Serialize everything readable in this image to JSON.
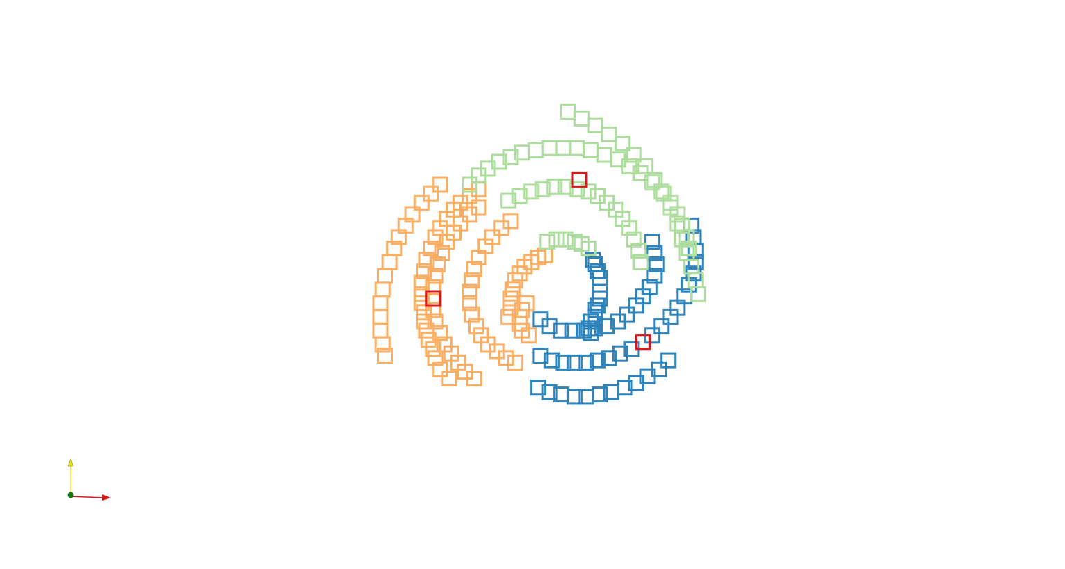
{
  "chart_data": {
    "type": "scatter",
    "marker": "hollow-square",
    "grid": false,
    "legend": "none",
    "xlim": [
      -1.55,
      1.55
    ],
    "ylim": [
      -1.1,
      1.1
    ],
    "series": [
      {
        "color": "#2e83bb",
        "arms": [
          [
            [
              0.05,
              -0.15
            ],
            [
              0.04,
              -0.13
            ],
            [
              0.05,
              -0.1
            ],
            [
              0.07,
              -0.08
            ],
            [
              0.07,
              -0.05
            ],
            [
              0.08,
              -0.03
            ],
            [
              0.09,
              0.0
            ],
            [
              0.09,
              0.03
            ],
            [
              0.09,
              0.06
            ],
            [
              0.09,
              0.09
            ],
            [
              0.08,
              0.12
            ],
            [
              0.07,
              0.15
            ],
            [
              0.06,
              0.17
            ]
          ],
          [
            [
              -0.17,
              -0.09
            ],
            [
              -0.13,
              -0.12
            ],
            [
              -0.08,
              -0.14
            ],
            [
              -0.03,
              -0.14
            ],
            [
              0.02,
              -0.14
            ],
            [
              0.07,
              -0.13
            ],
            [
              0.12,
              -0.12
            ],
            [
              0.17,
              -0.1
            ],
            [
              0.21,
              -0.07
            ],
            [
              0.25,
              -0.03
            ],
            [
              0.28,
              0.01
            ],
            [
              0.31,
              0.05
            ],
            [
              0.33,
              0.1
            ],
            [
              0.34,
              0.15
            ],
            [
              0.33,
              0.2
            ],
            [
              0.32,
              0.25
            ]
          ],
          [
            [
              -0.17,
              -0.25
            ],
            [
              -0.12,
              -0.27
            ],
            [
              -0.07,
              -0.28
            ],
            [
              -0.02,
              -0.28
            ],
            [
              0.03,
              -0.28
            ],
            [
              0.08,
              -0.27
            ],
            [
              0.13,
              -0.26
            ],
            [
              0.18,
              -0.24
            ],
            [
              0.23,
              -0.22
            ],
            [
              0.28,
              -0.19
            ],
            [
              0.32,
              -0.16
            ],
            [
              0.36,
              -0.12
            ],
            [
              0.4,
              -0.08
            ],
            [
              0.43,
              -0.04
            ],
            [
              0.46,
              0.01
            ],
            [
              0.48,
              0.06
            ],
            [
              0.5,
              0.11
            ],
            [
              0.51,
              0.16
            ],
            [
              0.51,
              0.21
            ],
            [
              0.5,
              0.27
            ],
            [
              0.49,
              0.32
            ]
          ],
          [
            [
              -0.18,
              -0.39
            ],
            [
              -0.13,
              -0.41
            ],
            [
              -0.08,
              -0.42
            ],
            [
              -0.02,
              -0.43
            ],
            [
              0.03,
              -0.43
            ],
            [
              0.09,
              -0.42
            ],
            [
              0.14,
              -0.41
            ],
            [
              0.2,
              -0.39
            ],
            [
              0.25,
              -0.37
            ],
            [
              0.3,
              -0.34
            ],
            [
              0.35,
              -0.31
            ],
            [
              0.39,
              -0.27
            ]
          ]
        ]
      },
      {
        "color": "#faae63",
        "arms": [
          [
            [
              -0.23,
              -0.02
            ],
            [
              -0.25,
              -0.05
            ],
            [
              -0.26,
              -0.08
            ],
            [
              -0.26,
              -0.11
            ],
            [
              -0.25,
              -0.14
            ],
            [
              -0.22,
              -0.16
            ]
          ],
          [
            [
              -0.31,
              -0.08
            ],
            [
              -0.3,
              -0.04
            ],
            [
              -0.3,
              0.0
            ],
            [
              -0.29,
              0.04
            ],
            [
              -0.28,
              0.08
            ],
            [
              -0.26,
              0.11
            ],
            [
              -0.24,
              0.14
            ],
            [
              -0.21,
              0.16
            ],
            [
              -0.18,
              0.18
            ],
            [
              -0.15,
              0.19
            ]
          ],
          [
            [
              -0.28,
              -0.28
            ],
            [
              -0.32,
              -0.26
            ],
            [
              -0.36,
              -0.23
            ],
            [
              -0.4,
              -0.2
            ],
            [
              -0.43,
              -0.16
            ],
            [
              -0.45,
              -0.12
            ],
            [
              -0.47,
              -0.07
            ],
            [
              -0.48,
              -0.02
            ],
            [
              -0.48,
              0.03
            ],
            [
              -0.47,
              0.08
            ],
            [
              -0.46,
              0.13
            ],
            [
              -0.44,
              0.18
            ],
            [
              -0.41,
              0.23
            ],
            [
              -0.38,
              0.27
            ],
            [
              -0.34,
              0.31
            ],
            [
              -0.3,
              0.34
            ]
          ],
          [
            [
              -0.46,
              -0.35
            ],
            [
              -0.5,
              -0.32
            ],
            [
              -0.53,
              -0.28
            ],
            [
              -0.56,
              -0.24
            ],
            [
              -0.59,
              -0.2
            ],
            [
              -0.61,
              -0.15
            ],
            [
              -0.63,
              -0.1
            ],
            [
              -0.64,
              -0.05
            ],
            [
              -0.64,
              0.0
            ],
            [
              -0.64,
              0.05
            ],
            [
              -0.63,
              0.1
            ],
            [
              -0.62,
              0.15
            ],
            [
              -0.6,
              0.2
            ],
            [
              -0.58,
              0.25
            ],
            [
              -0.55,
              0.29
            ],
            [
              -0.52,
              0.33
            ],
            [
              -0.48,
              0.37
            ],
            [
              -0.44,
              0.4
            ]
          ],
          [
            [
              -0.57,
              -0.35
            ],
            [
              -0.61,
              -0.31
            ],
            [
              -0.63,
              -0.26
            ],
            [
              -0.64,
              -0.22
            ],
            [
              -0.66,
              -0.18
            ],
            [
              -0.67,
              -0.14
            ],
            [
              -0.68,
              -0.1
            ],
            [
              -0.68,
              -0.06
            ],
            [
              -0.69,
              -0.02
            ],
            [
              -0.69,
              0.02
            ],
            [
              -0.69,
              0.07
            ],
            [
              -0.68,
              0.12
            ],
            [
              -0.67,
              0.17
            ],
            [
              -0.65,
              0.22
            ],
            [
              -0.63,
              0.27
            ],
            [
              -0.61,
              0.31
            ],
            [
              -0.58,
              0.35
            ],
            [
              -0.55,
              0.39
            ],
            [
              -0.52,
              0.42
            ],
            [
              -0.48,
              0.45
            ],
            [
              -0.44,
              0.48
            ]
          ],
          [
            [
              -0.85,
              -0.25
            ],
            [
              -0.86,
              -0.2
            ],
            [
              -0.87,
              -0.14
            ],
            [
              -0.87,
              -0.08
            ],
            [
              -0.87,
              -0.02
            ],
            [
              -0.86,
              0.04
            ],
            [
              -0.85,
              0.1
            ],
            [
              -0.83,
              0.16
            ],
            [
              -0.81,
              0.22
            ],
            [
              -0.79,
              0.27
            ],
            [
              -0.76,
              0.32
            ],
            [
              -0.73,
              0.37
            ],
            [
              -0.69,
              0.42
            ],
            [
              -0.65,
              0.46
            ],
            [
              -0.61,
              0.5
            ]
          ]
        ]
      },
      {
        "color": "#addd9e",
        "arms": [
          [
            [
              -0.1,
              0.26
            ],
            [
              -0.06,
              0.26
            ],
            [
              -0.02,
              0.25
            ],
            [
              0.01,
              0.24
            ],
            [
              0.04,
              0.22
            ],
            [
              -0.14,
              0.25
            ]
          ],
          [
            [
              -0.31,
              0.43
            ],
            [
              -0.26,
              0.45
            ],
            [
              -0.21,
              0.47
            ],
            [
              -0.16,
              0.48
            ],
            [
              -0.11,
              0.49
            ],
            [
              -0.06,
              0.49
            ],
            [
              -0.01,
              0.48
            ],
            [
              0.04,
              0.47
            ],
            [
              0.08,
              0.45
            ],
            [
              0.12,
              0.42
            ],
            [
              0.16,
              0.39
            ],
            [
              0.19,
              0.35
            ],
            [
              0.22,
              0.31
            ],
            [
              0.24,
              0.26
            ],
            [
              0.26,
              0.21
            ],
            [
              0.27,
              0.16
            ]
          ],
          [
            [
              -0.48,
              0.5
            ],
            [
              -0.44,
              0.54
            ],
            [
              -0.4,
              0.57
            ],
            [
              -0.35,
              0.6
            ],
            [
              -0.3,
              0.62
            ],
            [
              -0.25,
              0.64
            ],
            [
              -0.19,
              0.65
            ],
            [
              -0.13,
              0.66
            ],
            [
              -0.07,
              0.66
            ],
            [
              -0.01,
              0.66
            ],
            [
              0.05,
              0.65
            ],
            [
              0.11,
              0.63
            ],
            [
              0.17,
              0.61
            ],
            [
              0.22,
              0.58
            ],
            [
              0.27,
              0.55
            ],
            [
              0.32,
              0.51
            ],
            [
              0.36,
              0.47
            ],
            [
              0.4,
              0.42
            ],
            [
              0.43,
              0.37
            ],
            [
              0.45,
              0.32
            ],
            [
              0.47,
              0.27
            ],
            [
              0.48,
              0.22
            ]
          ],
          [
            [
              -0.05,
              0.82
            ],
            [
              0.01,
              0.79
            ],
            [
              0.07,
              0.76
            ],
            [
              0.13,
              0.72
            ],
            [
              0.19,
              0.68
            ],
            [
              0.24,
              0.63
            ],
            [
              0.29,
              0.58
            ],
            [
              0.33,
              0.52
            ],
            [
              0.37,
              0.46
            ],
            [
              0.4,
              0.4
            ],
            [
              0.43,
              0.33
            ],
            [
              0.45,
              0.26
            ],
            [
              0.47,
              0.2
            ],
            [
              0.49,
              0.14
            ],
            [
              0.51,
              0.08
            ],
            [
              0.52,
              0.02
            ]
          ]
        ]
      },
      {
        "color": "#d7191c",
        "points": [
          [
            0.0,
            0.52
          ],
          [
            -0.64,
            0.0
          ],
          [
            0.28,
            -0.19
          ]
        ]
      }
    ]
  },
  "axes_gizmo": {
    "x_axis_color": "#d7191c",
    "y_axis_color": "#e6e61a",
    "origin_color": "#1a7a1a"
  }
}
